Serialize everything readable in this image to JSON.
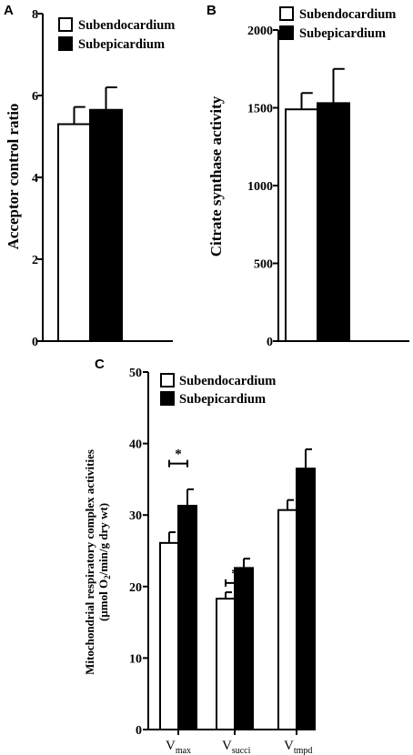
{
  "chart_data": [
    {
      "panel": "A",
      "type": "bar",
      "ylabel": "Acceptor control ratio",
      "ylim": [
        0,
        8
      ],
      "yticks": [
        0,
        2,
        4,
        6,
        8
      ],
      "legend_position": "top-left",
      "series": [
        {
          "name": "Subendocardium",
          "color": "#ffffff",
          "values": [
            5.3
          ],
          "errors": [
            0.42
          ]
        },
        {
          "name": "Subepicardium",
          "color": "#000000",
          "values": [
            5.65
          ],
          "errors": [
            0.55
          ]
        }
      ]
    },
    {
      "panel": "B",
      "type": "bar",
      "ylabel": "Citrate synthase activity",
      "ylim": [
        0,
        2000
      ],
      "yticks": [
        0,
        500,
        1000,
        1500,
        2000
      ],
      "legend_position": "top-left",
      "series": [
        {
          "name": "Subendocardium",
          "color": "#ffffff",
          "values": [
            1490
          ],
          "errors": [
            105
          ]
        },
        {
          "name": "Subepicardium",
          "color": "#000000",
          "values": [
            1530
          ],
          "errors": [
            220
          ]
        }
      ]
    },
    {
      "panel": "C",
      "type": "bar",
      "ylabel_line1": "Mitochondrial respiratory complex activities",
      "ylabel_line2_prefix": "(µmol O",
      "ylabel_line2_sub": "2",
      "ylabel_line2_suffix": "/min/g dry wt)",
      "ylim": [
        0,
        50
      ],
      "yticks": [
        0,
        10,
        20,
        30,
        40,
        50
      ],
      "legend_position": "top-left",
      "categories": [
        {
          "main": "V",
          "sub": "max"
        },
        {
          "main": "V",
          "sub": "succi"
        },
        {
          "main": "V",
          "sub": "tmpd"
        }
      ],
      "series": [
        {
          "name": "Subendocardium",
          "color": "#ffffff",
          "values": [
            26.1,
            18.3,
            30.7
          ],
          "errors": [
            1.5,
            0.9,
            1.4
          ]
        },
        {
          "name": "Subepicardium",
          "color": "#000000",
          "values": [
            31.3,
            22.6,
            36.5
          ],
          "errors": [
            2.3,
            1.3,
            2.7
          ]
        }
      ],
      "significance": [
        {
          "category": 0,
          "label": "*",
          "y": 37.2
        },
        {
          "category": 1,
          "label": "*",
          "y": 20.5
        }
      ]
    }
  ]
}
